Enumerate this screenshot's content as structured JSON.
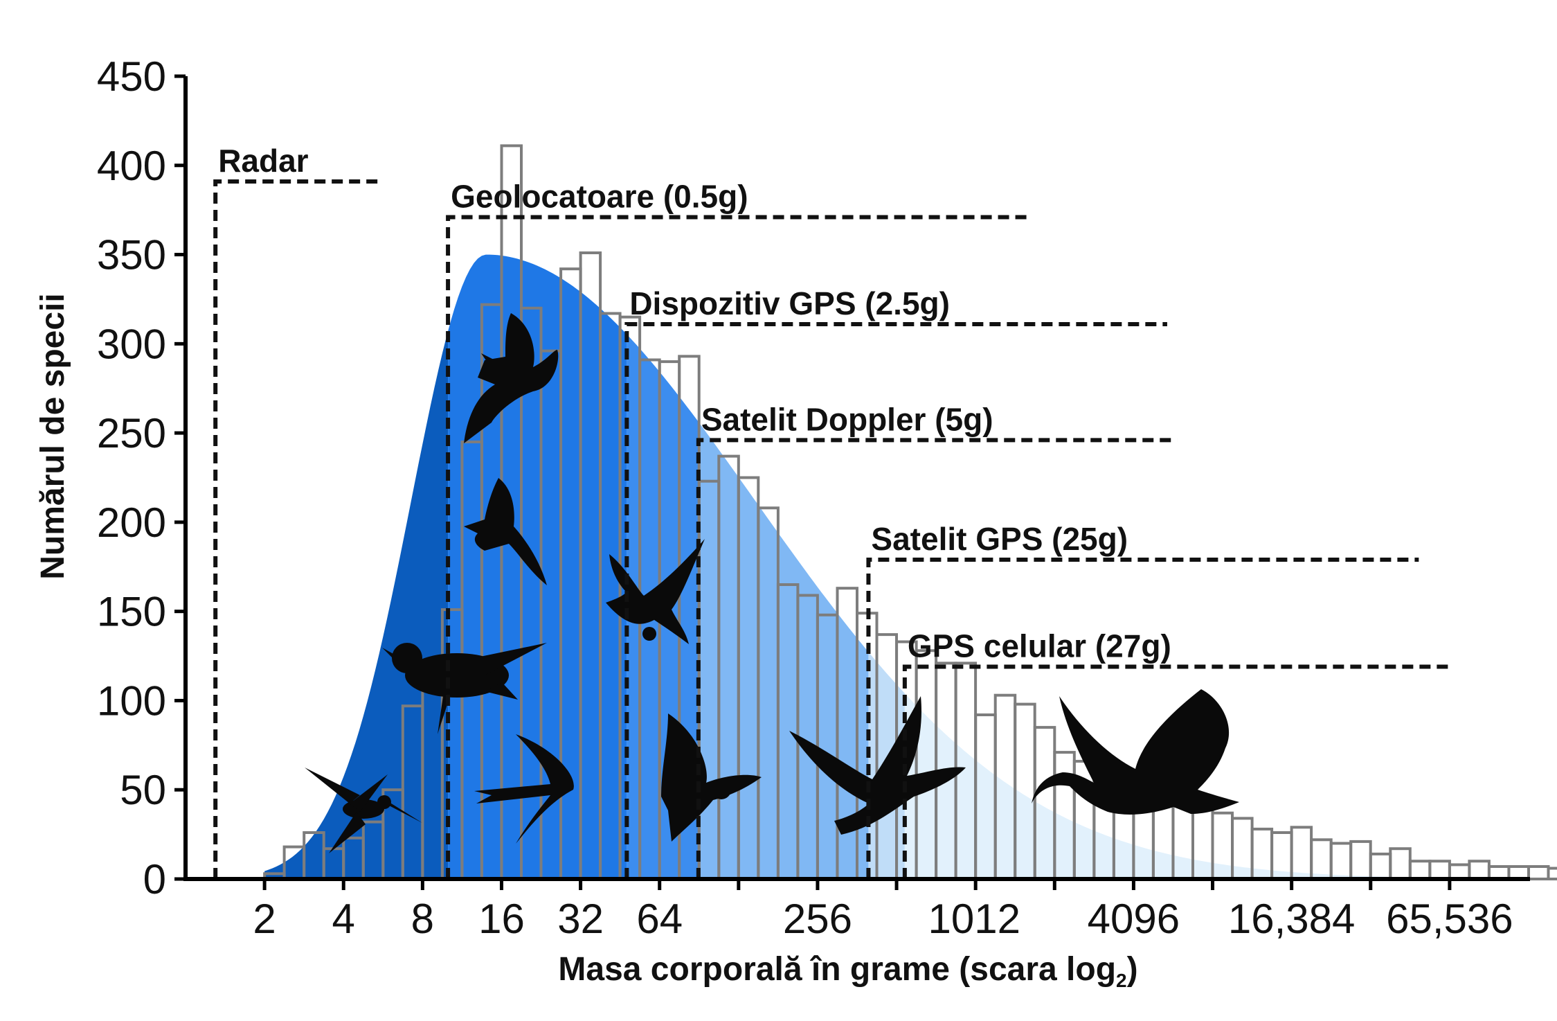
{
  "chart_data": {
    "type": "bar",
    "title": "",
    "xlabel": "Masa corporală în grame (scara log",
    "xlabel_subscript": "2",
    "xlabel_close": ")",
    "ylabel": "Numărul de specii",
    "x_scale": "log2",
    "xlim": [
      1,
      131072
    ],
    "ylim": [
      0,
      450
    ],
    "y_ticks": [
      0,
      50,
      100,
      150,
      200,
      250,
      300,
      350,
      400,
      450
    ],
    "x_ticks": [
      {
        "value": 2,
        "label": "2"
      },
      {
        "value": 4,
        "label": "4"
      },
      {
        "value": 8,
        "label": "8"
      },
      {
        "value": 16,
        "label": "16"
      },
      {
        "value": 32,
        "label": "32"
      },
      {
        "value": 64,
        "label": "64"
      },
      {
        "value": 256,
        "label": "256"
      },
      {
        "value": 1012,
        "label": "1012"
      },
      {
        "value": 4096,
        "label": "4096"
      },
      {
        "value": 16384,
        "label": "16,384"
      },
      {
        "value": 65536,
        "label": "65,536"
      }
    ],
    "grid": false,
    "histogram": {
      "bin_width_log2": 0.25,
      "start_log2": 1,
      "values": [
        3,
        18,
        26,
        17,
        23,
        32,
        50,
        97,
        120,
        151,
        245,
        322,
        411,
        320,
        296,
        342,
        351,
        317,
        315,
        291,
        290,
        293,
        223,
        237,
        225,
        208,
        165,
        159,
        148,
        163,
        149,
        137,
        133,
        128,
        121,
        121,
        92,
        103,
        98,
        85,
        71,
        66,
        65,
        53,
        46,
        45,
        43,
        39,
        37,
        34,
        28,
        26,
        29,
        22,
        20,
        21,
        14,
        17,
        10,
        10,
        8,
        10,
        7,
        7,
        7,
        6,
        5,
        4,
        5,
        3,
        3,
        3,
        3
      ]
    },
    "density_curve": {
      "mode_mass_g": 14,
      "peak_count": 350,
      "colors_by_band": [
        "#0b5cbd",
        "#1f78e6",
        "#3c8def",
        "#80b8f4",
        "#c0ddf8",
        "#e2f1fc"
      ]
    },
    "methods": [
      {
        "label": "Radar",
        "min_mass_g": 1.3,
        "line_count": 391,
        "line_end_mass_g": 5.5
      },
      {
        "label": "Geolocatoare (0.5g)",
        "min_mass_g": 10,
        "line_count": 371,
        "line_end_mass_g": 1600
      },
      {
        "label": "Dispozitiv GPS (2.5g)",
        "min_mass_g": 48,
        "line_count": 311,
        "line_end_mass_g": 5500
      },
      {
        "label": "Satelit Doppler (5g)",
        "min_mass_g": 90,
        "line_count": 246,
        "line_end_mass_g": 6000
      },
      {
        "label": "Satelit GPS (25g)",
        "min_mass_g": 400,
        "line_count": 179,
        "line_end_mass_g": 50000
      },
      {
        "label": "GPS celular (27g)",
        "min_mass_g": 550,
        "line_count": 119,
        "line_end_mass_g": 65000
      }
    ],
    "silhouettes": [
      "hummingbird-icon",
      "warbler-icon",
      "swift-icon",
      "pigeon-icon",
      "tern-icon",
      "dove-icon",
      "raptor-icon",
      "gull-icon",
      "goose-icon",
      "swan-icon"
    ]
  }
}
